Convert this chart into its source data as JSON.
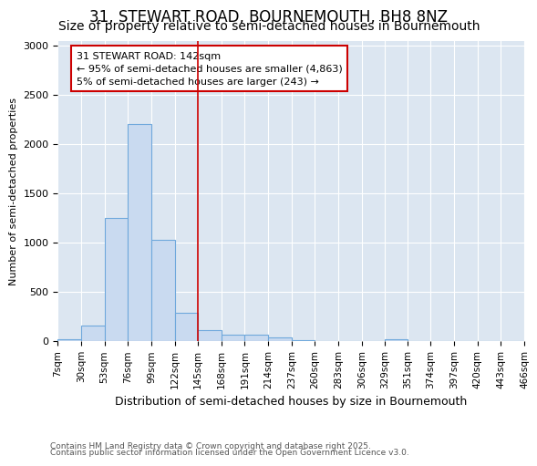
{
  "title": "31, STEWART ROAD, BOURNEMOUTH, BH8 8NZ",
  "subtitle": "Size of property relative to semi-detached houses in Bournemouth",
  "xlabel": "Distribution of semi-detached houses by size in Bournemouth",
  "ylabel": "Number of semi-detached properties",
  "annotation_line1": "31 STEWART ROAD: 142sqm",
  "annotation_line2": "← 95% of semi-detached houses are smaller (4,863)",
  "annotation_line3": "5% of semi-detached houses are larger (243) →",
  "footer_line1": "Contains HM Land Registry data © Crown copyright and database right 2025.",
  "footer_line2": "Contains public sector information licensed under the Open Government Licence v3.0.",
  "bar_edges": [
    7,
    30,
    53,
    76,
    99,
    122,
    145,
    168,
    191,
    214,
    237,
    260,
    283,
    306,
    329,
    351,
    374,
    397,
    420,
    443,
    466
  ],
  "bar_heights": [
    15,
    160,
    1250,
    2200,
    1030,
    290,
    110,
    60,
    60,
    35,
    10,
    0,
    0,
    0,
    20,
    0,
    0,
    0,
    0,
    0
  ],
  "bar_color": "#c9daf0",
  "bar_edge_color": "#6fa8dc",
  "vline_x": 145,
  "vline_color": "#cc0000",
  "ylim": [
    0,
    3050
  ],
  "yticks": [
    0,
    500,
    1000,
    1500,
    2000,
    2500,
    3000
  ],
  "fig_background_color": "#ffffff",
  "plot_background_color": "#dce6f1",
  "title_fontsize": 12,
  "subtitle_fontsize": 10,
  "annotation_box_facecolor": "#ffffff",
  "annotation_box_edgecolor": "#cc0000",
  "footer_color": "#555555"
}
